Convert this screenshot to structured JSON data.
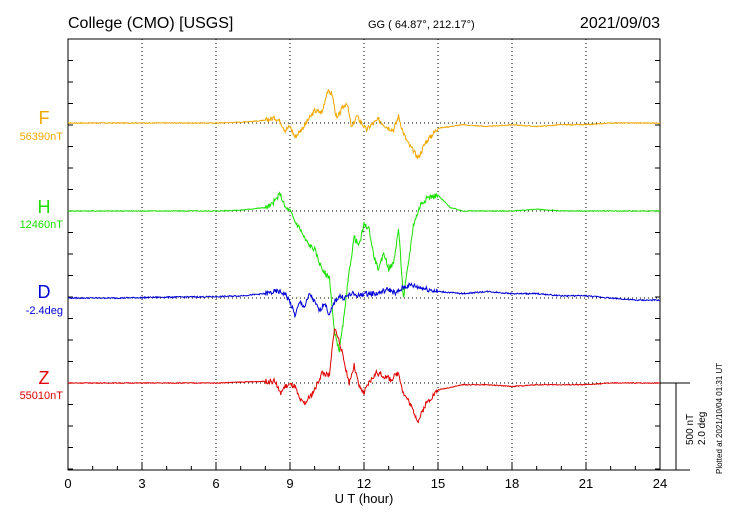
{
  "header": {
    "station": "College (CMO)  [USGS]",
    "coords": "GG ( 64.87°, 212.17°)",
    "date": "2021/09/03"
  },
  "footer": {
    "plotted": "Plotted at 2021/10/04 01:31  UT"
  },
  "scale": {
    "nt": "500 nT",
    "deg": "2.0 deg"
  },
  "chart_data": {
    "type": "line",
    "xlabel": "U T (hour)",
    "xlim": [
      0,
      24
    ],
    "xticks": [
      0,
      3,
      6,
      9,
      12,
      15,
      18,
      21,
      24
    ],
    "units_per_panel_unit": "500 nT / 2.0 deg per scale bar",
    "series": [
      {
        "name": "F",
        "baseline": "56390nT",
        "color": "#f0a800",
        "x": [
          0,
          2,
          4,
          6,
          7,
          8,
          8.4,
          8.6,
          8.8,
          9.0,
          9.2,
          9.5,
          9.8,
          10.0,
          10.3,
          10.5,
          10.7,
          10.9,
          11.1,
          11.3,
          11.5,
          11.7,
          11.9,
          12.1,
          12.3,
          12.6,
          12.9,
          13.2,
          13.4,
          13.6,
          13.8,
          14.0,
          14.2,
          14.5,
          15.0,
          16,
          17,
          18,
          19,
          20,
          21,
          22,
          23,
          24
        ],
        "y": [
          0,
          0,
          0,
          0,
          5,
          15,
          30,
          10,
          -40,
          -20,
          -80,
          -30,
          30,
          70,
          60,
          180,
          170,
          20,
          80,
          120,
          -30,
          40,
          0,
          -40,
          -10,
          20,
          -20,
          -40,
          40,
          -60,
          -120,
          -160,
          -200,
          -110,
          -30,
          -10,
          -20,
          -10,
          -20,
          -10,
          -10,
          0,
          0,
          0
        ]
      },
      {
        "name": "H",
        "baseline": "12460nT",
        "color": "#19e000",
        "x": [
          0,
          2,
          4,
          6,
          7,
          8,
          8.2,
          8.4,
          8.6,
          8.8,
          9.0,
          9.2,
          9.4,
          9.6,
          9.8,
          10.0,
          10.2,
          10.4,
          10.6,
          10.8,
          11.0,
          11.2,
          11.4,
          11.6,
          11.8,
          12.0,
          12.2,
          12.4,
          12.6,
          12.8,
          13.0,
          13.2,
          13.4,
          13.6,
          13.8,
          14.0,
          14.3,
          14.6,
          15.0,
          15.5,
          16,
          17,
          18,
          19,
          20,
          21,
          22,
          23,
          24
        ],
        "y": [
          0,
          0,
          0,
          0,
          5,
          20,
          30,
          60,
          100,
          20,
          0,
          -60,
          -100,
          -160,
          -200,
          -220,
          -300,
          -360,
          -380,
          -700,
          -800,
          -600,
          -350,
          -150,
          -200,
          -80,
          -100,
          -260,
          -340,
          -240,
          -330,
          -300,
          -100,
          -500,
          -300,
          -80,
          40,
          80,
          90,
          20,
          0,
          0,
          0,
          10,
          0,
          0,
          0,
          0,
          0
        ]
      },
      {
        "name": "D",
        "baseline": "-2.4deg",
        "color": "#0000d8",
        "x": [
          0,
          2,
          4,
          6,
          7,
          8,
          8.5,
          8.8,
          9.0,
          9.2,
          9.4,
          9.6,
          9.8,
          10.0,
          10.2,
          10.4,
          10.6,
          10.8,
          11.0,
          11.2,
          11.5,
          11.8,
          12.0,
          12.5,
          13.0,
          13.3,
          13.6,
          13.9,
          14.2,
          14.6,
          15,
          16,
          17,
          18,
          19,
          20,
          21,
          22,
          23,
          24
        ],
        "y": [
          0,
          0,
          0.02,
          0.03,
          0.05,
          0.1,
          0.15,
          0.1,
          -0.1,
          -0.4,
          -0.1,
          -0.2,
          0.1,
          -0.1,
          -0.3,
          -0.1,
          -0.4,
          -0.1,
          0.05,
          0.0,
          0.1,
          0.05,
          0.1,
          0.1,
          0.2,
          0.1,
          0.25,
          0.3,
          0.25,
          0.2,
          0.15,
          0.1,
          0.15,
          0.1,
          0.1,
          0.05,
          0.05,
          0.0,
          -0.05,
          -0.05
        ]
      },
      {
        "name": "Z",
        "baseline": "55010nT",
        "color": "#e00000",
        "x": [
          0,
          2,
          4,
          6,
          7,
          8,
          8.4,
          8.6,
          8.8,
          9.0,
          9.2,
          9.4,
          9.6,
          9.8,
          10.0,
          10.3,
          10.6,
          10.8,
          11.0,
          11.2,
          11.4,
          11.6,
          11.8,
          12.0,
          12.2,
          12.5,
          12.8,
          13.1,
          13.4,
          13.6,
          13.8,
          14.0,
          14.2,
          14.5,
          15,
          16,
          17,
          18,
          19,
          20,
          21,
          22,
          23,
          24
        ],
        "y": [
          0,
          0,
          0,
          0,
          5,
          10,
          10,
          -60,
          -20,
          -10,
          -20,
          -100,
          -120,
          -80,
          -40,
          60,
          40,
          320,
          240,
          120,
          0,
          100,
          -20,
          -60,
          0,
          60,
          40,
          20,
          60,
          -60,
          -100,
          -160,
          -220,
          -120,
          -40,
          -10,
          -10,
          -20,
          -10,
          -10,
          -10,
          0,
          0,
          0
        ]
      }
    ]
  }
}
